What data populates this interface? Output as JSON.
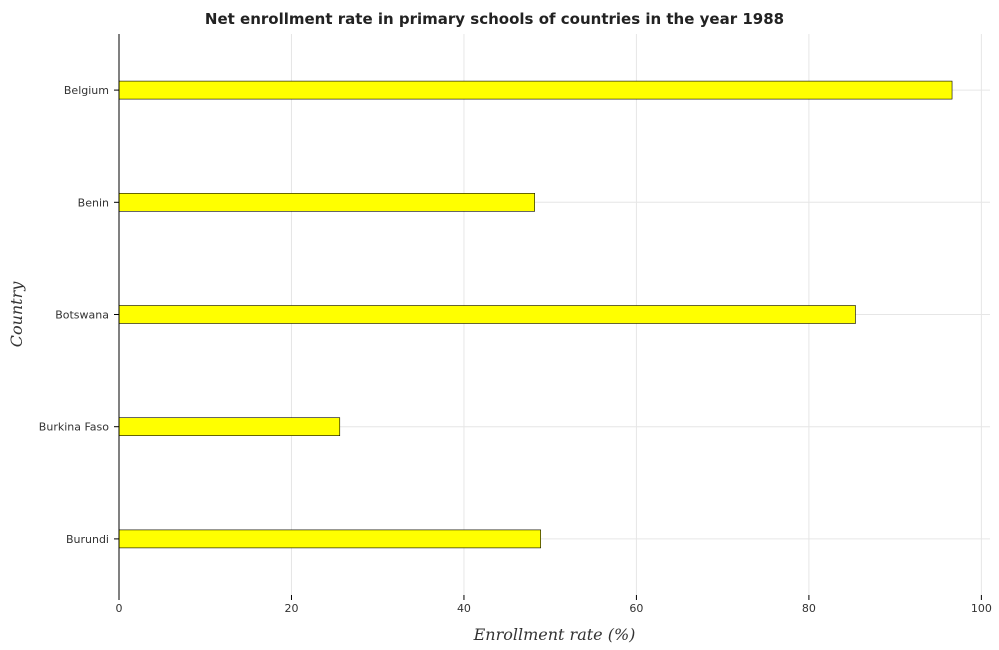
{
  "chart_data": {
    "type": "bar",
    "orientation": "horizontal",
    "title": "Net enrollment rate in primary schools of countries in the year 1988",
    "xlabel": "Enrollment rate (%)",
    "ylabel": "Country",
    "categories": [
      "Belgium",
      "Benin",
      "Botswana",
      "Burkina Faso",
      "Burundi"
    ],
    "values": [
      96.6,
      48.2,
      85.4,
      25.6,
      48.9
    ],
    "xlim": [
      0,
      101
    ],
    "xticks": [
      0,
      20,
      40,
      60,
      80,
      100
    ],
    "xtick_labels": [
      "0",
      "20",
      "40",
      "60",
      "80",
      "100"
    ],
    "grid": true,
    "bar_color": "#ffff00"
  }
}
